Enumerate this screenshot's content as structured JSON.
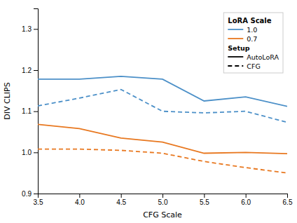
{
  "chart_data": {
    "type": "line",
    "xlabel": "CFG Scale",
    "ylabel": "DIV CLIPS",
    "x": [
      3.5,
      4.0,
      4.5,
      5.0,
      5.5,
      6.0,
      6.5
    ],
    "series": [
      {
        "color": "#4C90C8",
        "line_style": "solid",
        "values": [
          1.178,
          1.178,
          1.185,
          1.178,
          1.125,
          1.135,
          1.112
        ]
      },
      {
        "color": "#4C90C8",
        "line_style": "dashed",
        "values": [
          1.113,
          1.132,
          1.153,
          1.1,
          1.096,
          1.1,
          1.073
        ]
      },
      {
        "color": "#E87820",
        "line_style": "solid",
        "values": [
          1.068,
          1.058,
          1.035,
          1.025,
          0.998,
          1.0,
          0.997
        ]
      },
      {
        "color": "#E87820",
        "line_style": "dashed",
        "values": [
          1.008,
          1.008,
          1.005,
          0.998,
          0.978,
          0.963,
          0.95
        ]
      }
    ],
    "xlim": [
      3.5,
      6.5
    ],
    "xticks": [
      3.5,
      {
        "value": 4.0,
        "label": "4.0"
      },
      4.5,
      {
        "value": 5.0,
        "label": "5.0"
      },
      5.5,
      {
        "value": 6.0,
        "label": "6.0"
      },
      6.5
    ],
    "ylim": [
      0.9,
      1.35
    ],
    "yticks": [
      0.9,
      {
        "value": 1.0,
        "label": "1.0"
      },
      1.1,
      1.2,
      1.3
    ],
    "legend": "upper right",
    "legend_title": "LoRA Scale",
    "legend_entries": [
      {
        "label": "1.0",
        "color": "#4C90C8",
        "line_style": "solid"
      },
      {
        "label": "0.7",
        "color": "#E87820",
        "line_style": "solid"
      },
      {
        "label": "Setup"
      },
      {
        "label": "AutoLoRA",
        "color": "black",
        "line_style": "solid"
      },
      {
        "label": "CFG",
        "color": "black",
        "line_style": "dashed"
      }
    ]
  }
}
